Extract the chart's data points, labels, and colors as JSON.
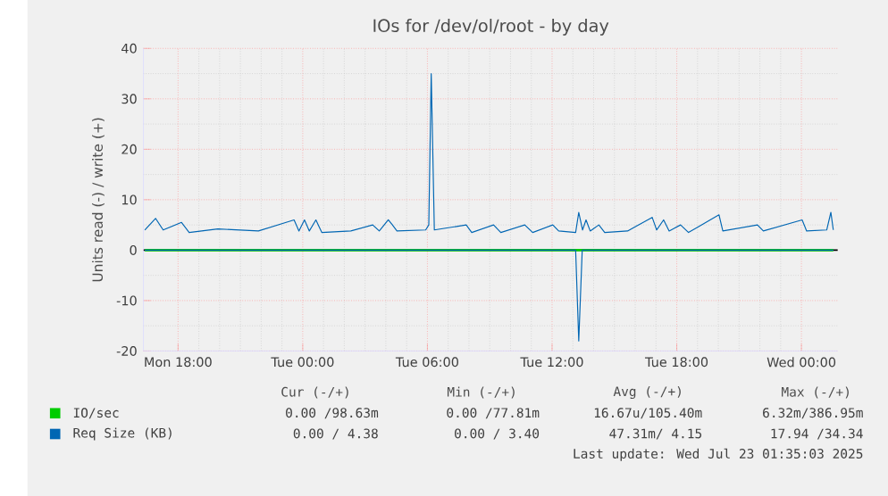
{
  "chart_data": {
    "type": "line",
    "title": "IOs for /dev/ol/root - by day",
    "ylabel": "Units read (-) / write (+)",
    "xlim": [
      "2025-07-21T16:20",
      "2025-07-23T01:45"
    ],
    "ylim": [
      -20,
      40
    ],
    "yticks": [
      -20,
      -10,
      0,
      10,
      20,
      30,
      40
    ],
    "xticks": [
      {
        "value": "2025-07-21T18:00",
        "label": "Mon 18:00"
      },
      {
        "value": "2025-07-22T00:00",
        "label": "Tue 00:00"
      },
      {
        "value": "2025-07-22T06:00",
        "label": "Tue 06:00"
      },
      {
        "value": "2025-07-22T12:00",
        "label": "Tue 12:00"
      },
      {
        "value": "2025-07-22T18:00",
        "label": "Tue 18:00"
      },
      {
        "value": "2025-07-23T00:00",
        "label": "Wed 00:00"
      }
    ],
    "grid": true,
    "legend": "bottom",
    "ref_lines": [
      {
        "axis": "y",
        "value": 0,
        "color": "#000000"
      }
    ],
    "series": [
      {
        "name": "IO/sec",
        "color": "#00cc00",
        "x": [
          "2025-07-21T16:24",
          "2025-07-23T01:32"
        ],
        "values": [
          0,
          0
        ]
      },
      {
        "name": "Req Size (KB)",
        "color": "#0066b3",
        "x": [
          "2025-07-21T16:24",
          "2025-07-21T16:55",
          "2025-07-21T17:17",
          "2025-07-21T18:10",
          "2025-07-21T18:32",
          "2025-07-21T19:55",
          "2025-07-21T21:52",
          "2025-07-21T23:35",
          "2025-07-21T23:49",
          "2025-07-22T00:05",
          "2025-07-22T00:19",
          "2025-07-22T00:38",
          "2025-07-22T00:55",
          "2025-07-22T02:19",
          "2025-07-22T03:22",
          "2025-07-22T03:41",
          "2025-07-22T04:07",
          "2025-07-22T04:19",
          "2025-07-22T04:32",
          "2025-07-22T05:55",
          "2025-07-22T06:04",
          "2025-07-22T06:11",
          "2025-07-22T06:20",
          "2025-07-22T07:52",
          "2025-07-22T08:08",
          "2025-07-22T09:11",
          "2025-07-22T09:32",
          "2025-07-22T10:41",
          "2025-07-22T11:04",
          "2025-07-22T12:02",
          "2025-07-22T12:19",
          "2025-07-22T13:08",
          "2025-07-22T13:17",
          "2025-07-22T13:28",
          "2025-07-22T13:38",
          "2025-07-22T13:50",
          "2025-07-22T14:15",
          "2025-07-22T14:32",
          "2025-07-22T15:38",
          "2025-07-22T16:49",
          "2025-07-22T17:02",
          "2025-07-22T17:22",
          "2025-07-22T17:38",
          "2025-07-22T18:11",
          "2025-07-22T18:34",
          "2025-07-22T20:02",
          "2025-07-22T20:13",
          "2025-07-22T21:53",
          "2025-07-22T22:10",
          "2025-07-23T00:02",
          "2025-07-23T00:15",
          "2025-07-23T01:13",
          "2025-07-23T01:25",
          "2025-07-23T01:32"
        ],
        "values": [
          4,
          6.3,
          4,
          5.5,
          3.5,
          4.2,
          3.8,
          6,
          3.8,
          6,
          3.8,
          6,
          3.5,
          3.8,
          5,
          3.8,
          6,
          5,
          3.8,
          4,
          5,
          35,
          4,
          5,
          3.5,
          5,
          3.5,
          5,
          3.5,
          5,
          3.8,
          3.5,
          7.5,
          4,
          6,
          3.8,
          5,
          3.5,
          3.8,
          6.5,
          4,
          6,
          3.8,
          5,
          3.5,
          7,
          3.8,
          5,
          3.8,
          6,
          3.8,
          4,
          7.5,
          4
        ]
      },
      {
        "color": "#0066b3",
        "x": [
          "2025-07-21T16:24",
          "2025-07-22T13:08",
          "2025-07-22T13:17",
          "2025-07-22T13:27",
          "2025-07-23T01:32"
        ],
        "values": [
          0,
          0,
          -18,
          0,
          0
        ]
      }
    ],
    "annotations": [
      "Cur (-/+)",
      "Min (-/+)",
      "Avg (-/+)",
      "Max (-/+)",
      "0.00 /98.63m",
      "0.00 /77.81m",
      "16.67u/105.40m",
      "6.32m/386.95m",
      "0.00 / 4.38",
      "0.00 / 3.40",
      "47.31m/ 4.15",
      "17.94 /34.34",
      "Last update: Wed Jul 23 01:35:03 2025"
    ]
  }
}
